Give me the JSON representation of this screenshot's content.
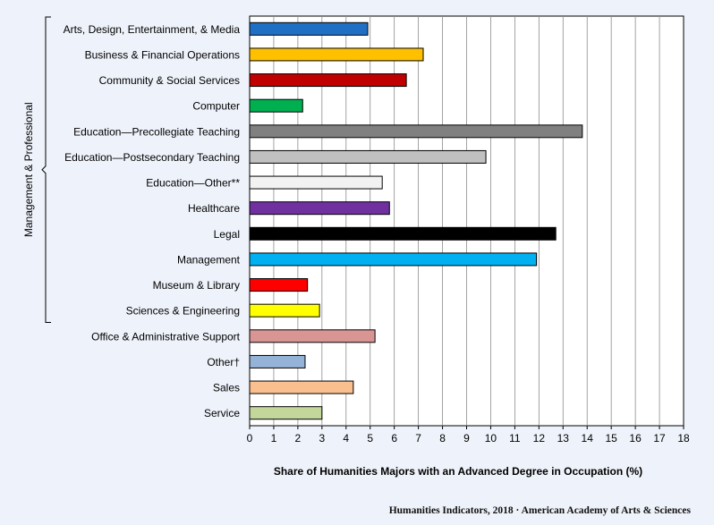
{
  "chart_data": {
    "type": "bar",
    "orientation": "horizontal",
    "categories": [
      "Arts, Design, Entertainment, & Media",
      "Business & Financial Operations",
      "Community & Social Services",
      "Computer",
      "Education—Precollegiate Teaching",
      "Education—Postsecondary Teaching",
      "Education—Other**",
      "Healthcare",
      "Legal",
      "Management",
      "Museum & Library",
      "Sciences & Engineering",
      "Office & Administrative Support",
      "Other†",
      "Sales",
      "Service"
    ],
    "values": [
      4.9,
      7.2,
      6.5,
      2.2,
      13.8,
      9.8,
      5.5,
      5.8,
      12.7,
      11.9,
      2.4,
      2.9,
      5.2,
      2.3,
      4.3,
      3.0
    ],
    "bar_colors": [
      "#1f6fc5",
      "#ffc000",
      "#c00000",
      "#00b050",
      "#808080",
      "#c0c0c0",
      "#f2f2f2",
      "#7030a0",
      "#000000",
      "#00b0f0",
      "#ff0000",
      "#ffff00",
      "#d99594",
      "#95b3d7",
      "#fabf8f",
      "#c4d79b"
    ],
    "xlabel": "Share of Humanities Majors with an Advanced Degree in Occupation (%)",
    "xlim": [
      0,
      18
    ],
    "xticks": [
      0,
      1,
      2,
      3,
      4,
      5,
      6,
      7,
      8,
      9,
      10,
      11,
      12,
      13,
      14,
      15,
      16,
      17,
      18
    ],
    "grid": "vertical",
    "group_bracket": {
      "label": "Management & Professional",
      "from": "Arts, Design, Entertainment, & Media",
      "to": "Sciences & Engineering"
    }
  },
  "footer": "Humanities Indicators, 2018 · American Academy of Arts & Sciences"
}
